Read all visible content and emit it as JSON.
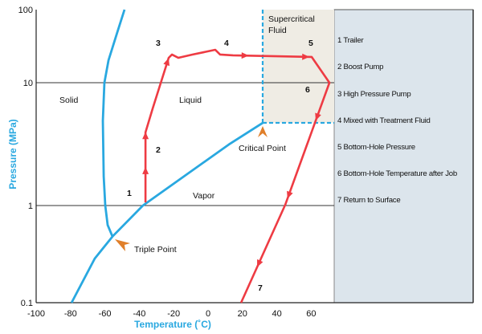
{
  "chart_data": {
    "type": "line",
    "title": "",
    "xlabel": "Temperature (˚C)",
    "ylabel": "Pressure (MPa)",
    "xlim": [
      -100,
      73.5
    ],
    "ylim": [
      0.1,
      100
    ],
    "yscale": "log",
    "x_ticks": [
      "-100",
      "-80",
      "-60",
      "-40",
      "-20",
      "0",
      "20",
      "40",
      "60"
    ],
    "x_tick_values": [
      -100,
      -80,
      -60,
      -40,
      -20,
      0,
      20,
      40,
      60
    ],
    "y_ticks": [
      "0.1",
      "1",
      "10",
      "100"
    ],
    "y_tick_values": [
      0.1,
      1,
      10,
      100
    ],
    "gridlines_y": [
      1,
      10
    ],
    "critical_point": {
      "T": 31.8,
      "p": 4.7
    },
    "series": [
      {
        "name": "melting-curve",
        "color": "#29a8e0",
        "points": [
          [
            -48.6,
            100
          ],
          [
            -52.8,
            49
          ],
          [
            -57.9,
            20.3
          ],
          [
            -60.3,
            10
          ],
          [
            -61.2,
            4.9
          ],
          [
            -60.7,
            1.72
          ],
          [
            -59.8,
            1
          ],
          [
            -58.4,
            0.63
          ],
          [
            -55.6,
            0.48
          ]
        ]
      },
      {
        "name": "vapor-pressure-curve",
        "color": "#29a8e0",
        "points": [
          [
            -79.4,
            0.1
          ],
          [
            -65.9,
            0.285
          ],
          [
            -55.6,
            0.48
          ],
          [
            -37.9,
            1
          ],
          [
            12.1,
            3.14
          ],
          [
            31.8,
            4.71
          ]
        ]
      },
      {
        "name": "treatment-path",
        "color": "#ee3b43",
        "points": [
          [
            -36.4,
            1.06
          ],
          [
            -36.4,
            3.94
          ],
          [
            -32.2,
            6.18
          ],
          [
            -22.9,
            21.9
          ],
          [
            -21.0,
            24.3
          ],
          [
            -17.3,
            21.9
          ],
          [
            -8.9,
            24.3
          ],
          [
            4.2,
            28.2
          ],
          [
            7.0,
            24.3
          ],
          [
            14.5,
            23.7
          ],
          [
            60.3,
            22.5
          ],
          [
            70.6,
            10
          ],
          [
            44.9,
            1.015
          ],
          [
            19.2,
            0.1
          ]
        ],
        "arrows": [
          [
            0,
            0.45
          ],
          [
            0,
            0.95
          ],
          [
            2,
            0.92
          ],
          [
            9,
            0.15
          ],
          [
            9,
            0.92
          ],
          [
            11,
            0.28
          ],
          [
            11,
            0.92
          ],
          [
            12,
            0.6
          ]
        ]
      }
    ],
    "regions": [
      "Solid",
      "Liquid",
      "Vapor",
      "Supercritical Fluid"
    ],
    "annotations": {
      "solid": "Solid",
      "liquid": "Liquid",
      "vapor": "Vapor",
      "supercritical_1": "Supercritical",
      "supercritical_2": "Fluid",
      "critical_point": "Critical Point",
      "triple_point": "Triple Point",
      "n1": "1",
      "n2": "2",
      "n3": "3",
      "n4": "4",
      "n5": "5",
      "n6": "6",
      "n7": "7"
    },
    "legend": [
      "1 Trailer",
      "2 Boost Pump",
      "3 High Pressure Pump",
      "4 Mixed with Treatment Fluid",
      "5 Bottom-Hole Pressure",
      "6 Bottom-Hole Temperature after Job",
      "7 Return to Surface"
    ],
    "legend_placement": "right",
    "colors": {
      "blue": "#29a8e0",
      "red": "#ee3b43",
      "orange": "#e07f2a",
      "legend_bg": "#dce5ec",
      "supercritical_bg": "#efece4"
    }
  }
}
